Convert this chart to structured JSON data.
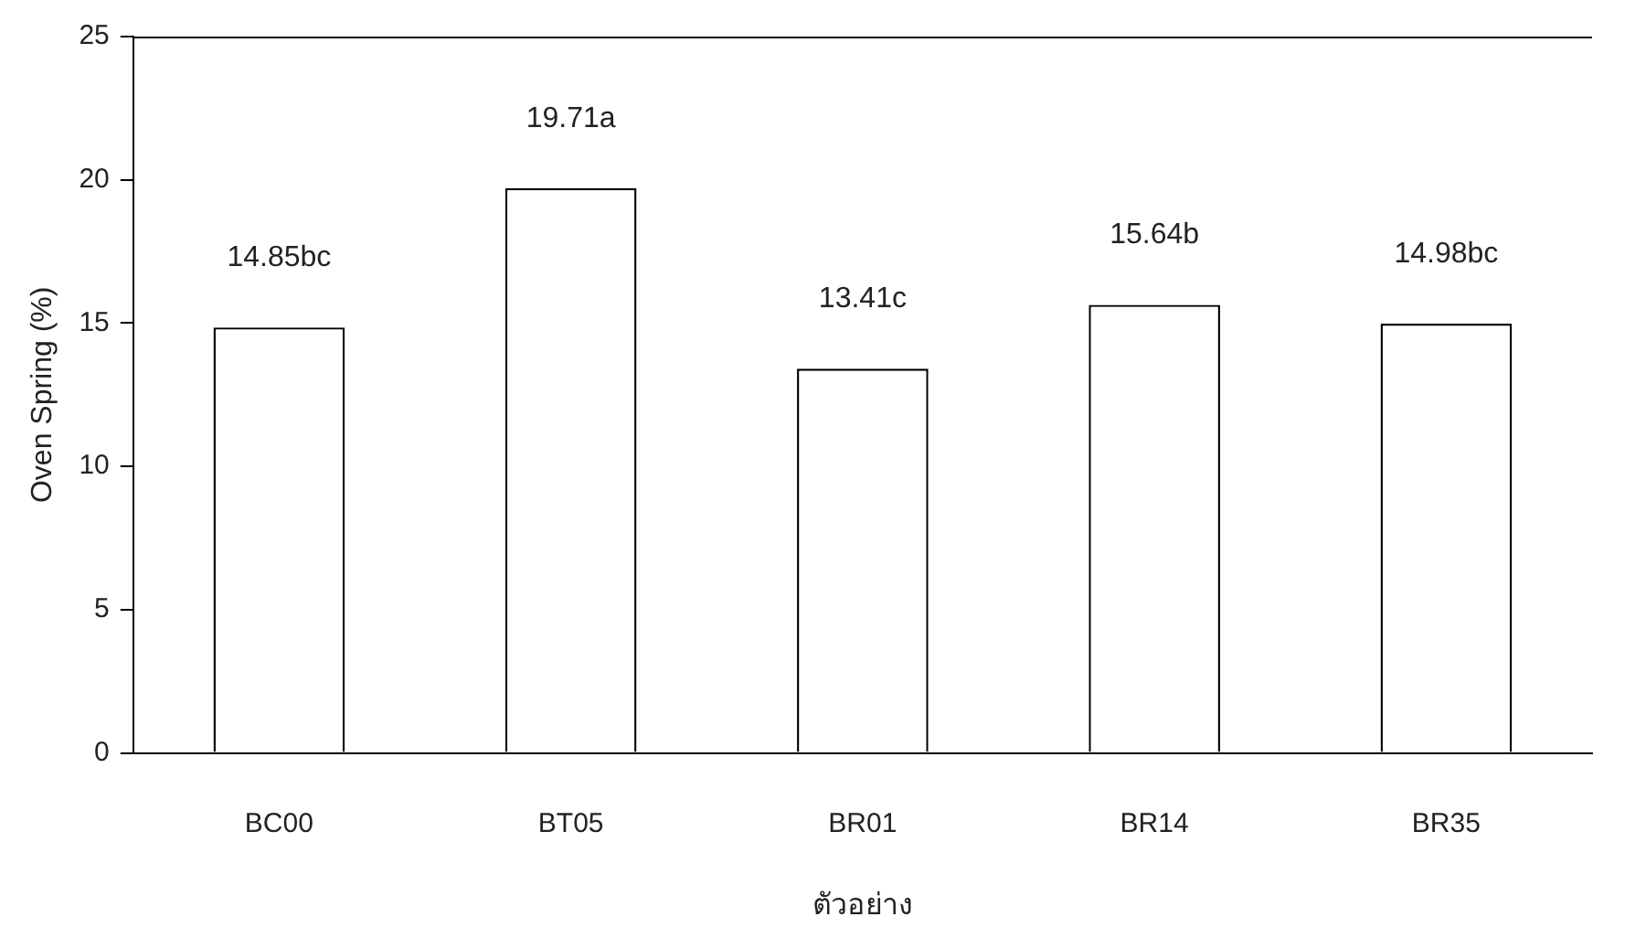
{
  "chart_data": {
    "type": "bar",
    "xlabel": "ตัวอย่าง",
    "ylabel": "Oven Spring (%)",
    "categories": [
      "BC00",
      "BT05",
      "BR01",
      "BR14",
      "BR35"
    ],
    "values": [
      14.85,
      19.71,
      13.41,
      15.64,
      14.98
    ],
    "value_labels": [
      "14.85bc",
      "19.71a",
      "13.41c",
      "15.64b",
      "14.98bc"
    ],
    "color": "#ffffff",
    "ylim": [
      0,
      25
    ],
    "yticks": [
      0,
      5,
      10,
      15,
      20,
      25
    ],
    "grid": false,
    "legend": false
  }
}
